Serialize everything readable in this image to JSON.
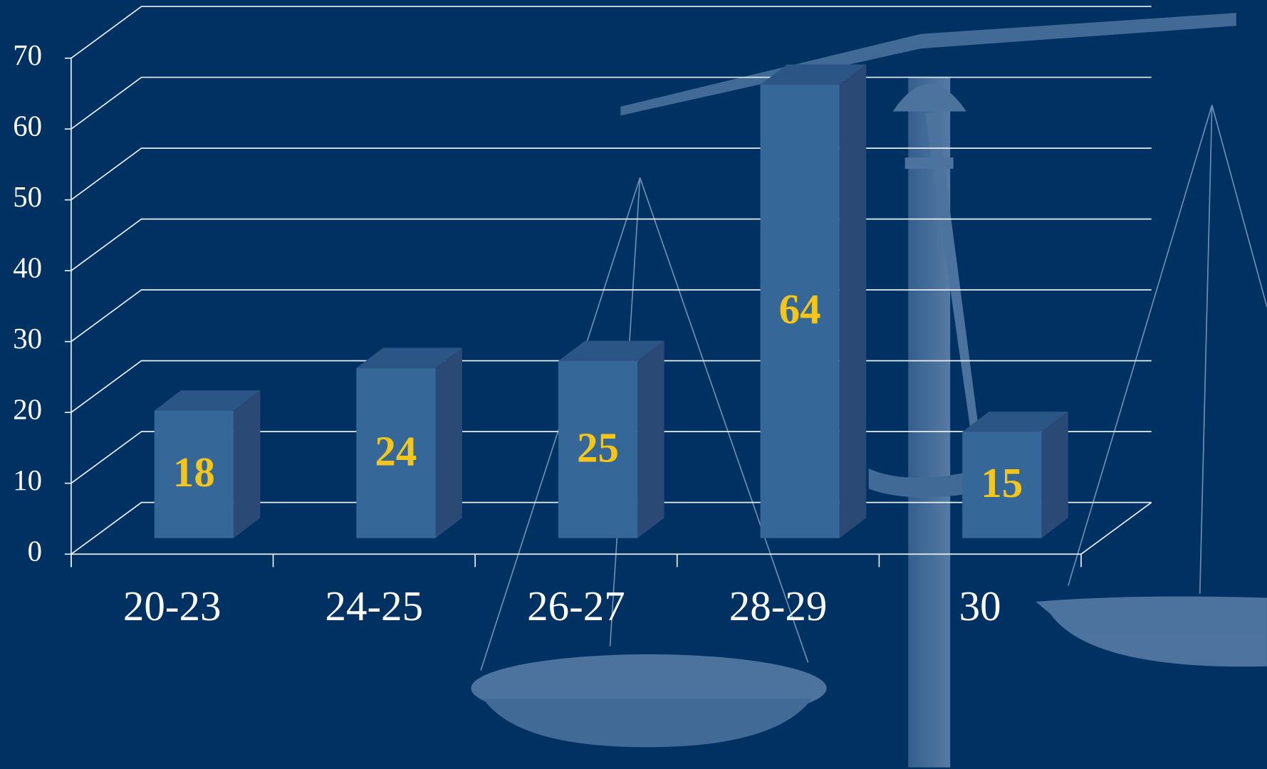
{
  "chart_data": {
    "type": "bar3d",
    "categories": [
      "20-23",
      "24-25",
      "26-27",
      "28-29",
      "30"
    ],
    "values": [
      18,
      24,
      25,
      64,
      15
    ],
    "color": "#356799",
    "ylim": [
      0,
      70
    ],
    "yticks": [
      0,
      10,
      20,
      30,
      40,
      50,
      60,
      70
    ],
    "grid": true
  }
}
